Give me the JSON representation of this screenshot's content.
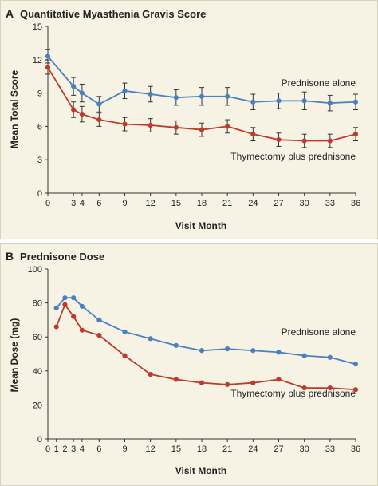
{
  "colors": {
    "prednisone_alone": "#4a7fc1",
    "thymectomy": "#c0392b",
    "panel_bg": "#f6f3e4"
  },
  "chart_data": [
    {
      "panel": "A",
      "type": "line",
      "title": "Quantitative Myasthenia Gravis Score",
      "xlabel": "Visit Month",
      "ylabel": "Mean Total Score",
      "xticks": [
        0,
        3,
        4,
        6,
        9,
        12,
        15,
        18,
        21,
        24,
        27,
        30,
        33,
        36
      ],
      "yticks": [
        0,
        3,
        6,
        9,
        12,
        15
      ],
      "ylim": [
        0,
        15
      ],
      "xlim": [
        0,
        36
      ],
      "error_bars": true,
      "series": [
        {
          "name": "Prednisone alone",
          "color": "#4a7fc1",
          "x": [
            0,
            3,
            4,
            6,
            9,
            12,
            15,
            18,
            21,
            24,
            27,
            30,
            33,
            36
          ],
          "y": [
            12.3,
            9.6,
            9.0,
            8.0,
            9.2,
            8.9,
            8.6,
            8.7,
            8.7,
            8.2,
            8.3,
            8.3,
            8.1,
            8.2
          ],
          "err": [
            0.6,
            0.8,
            0.8,
            0.7,
            0.7,
            0.7,
            0.7,
            0.8,
            0.8,
            0.7,
            0.7,
            0.8,
            0.7,
            0.7
          ]
        },
        {
          "name": "Thymectomy plus prednisone",
          "color": "#c0392b",
          "x": [
            0,
            3,
            4,
            6,
            9,
            12,
            15,
            18,
            21,
            24,
            27,
            30,
            33,
            36
          ],
          "y": [
            11.3,
            7.5,
            7.1,
            6.6,
            6.2,
            6.1,
            5.9,
            5.7,
            6.0,
            5.3,
            4.8,
            4.7,
            4.7,
            5.3
          ],
          "err": [
            0.6,
            0.7,
            0.7,
            0.6,
            0.6,
            0.6,
            0.6,
            0.6,
            0.6,
            0.6,
            0.6,
            0.6,
            0.6,
            0.6
          ]
        }
      ]
    },
    {
      "panel": "B",
      "type": "line",
      "title": "Prednisone Dose",
      "xlabel": "Visit Month",
      "ylabel": "Mean Dose (mg)",
      "xticks": [
        0,
        1,
        2,
        3,
        4,
        6,
        9,
        12,
        15,
        18,
        21,
        24,
        27,
        30,
        33,
        36
      ],
      "yticks": [
        0,
        20,
        40,
        60,
        80,
        100
      ],
      "ylim": [
        0,
        100
      ],
      "xlim": [
        0,
        36
      ],
      "error_bars": false,
      "series": [
        {
          "name": "Prednisone alone",
          "color": "#4a7fc1",
          "x": [
            1,
            2,
            3,
            4,
            6,
            9,
            12,
            15,
            18,
            21,
            24,
            27,
            30,
            33,
            36
          ],
          "y": [
            77,
            83,
            83,
            78,
            70,
            63,
            59,
            55,
            52,
            53,
            52,
            51,
            49,
            48,
            44
          ]
        },
        {
          "name": "Thymectomy plus prednisone",
          "color": "#c0392b",
          "x": [
            1,
            2,
            3,
            4,
            6,
            9,
            12,
            15,
            18,
            21,
            24,
            27,
            30,
            33,
            36
          ],
          "y": [
            66,
            79,
            72,
            64,
            61,
            49,
            38,
            35,
            33,
            32,
            33,
            35,
            30,
            30,
            29
          ]
        }
      ]
    }
  ]
}
